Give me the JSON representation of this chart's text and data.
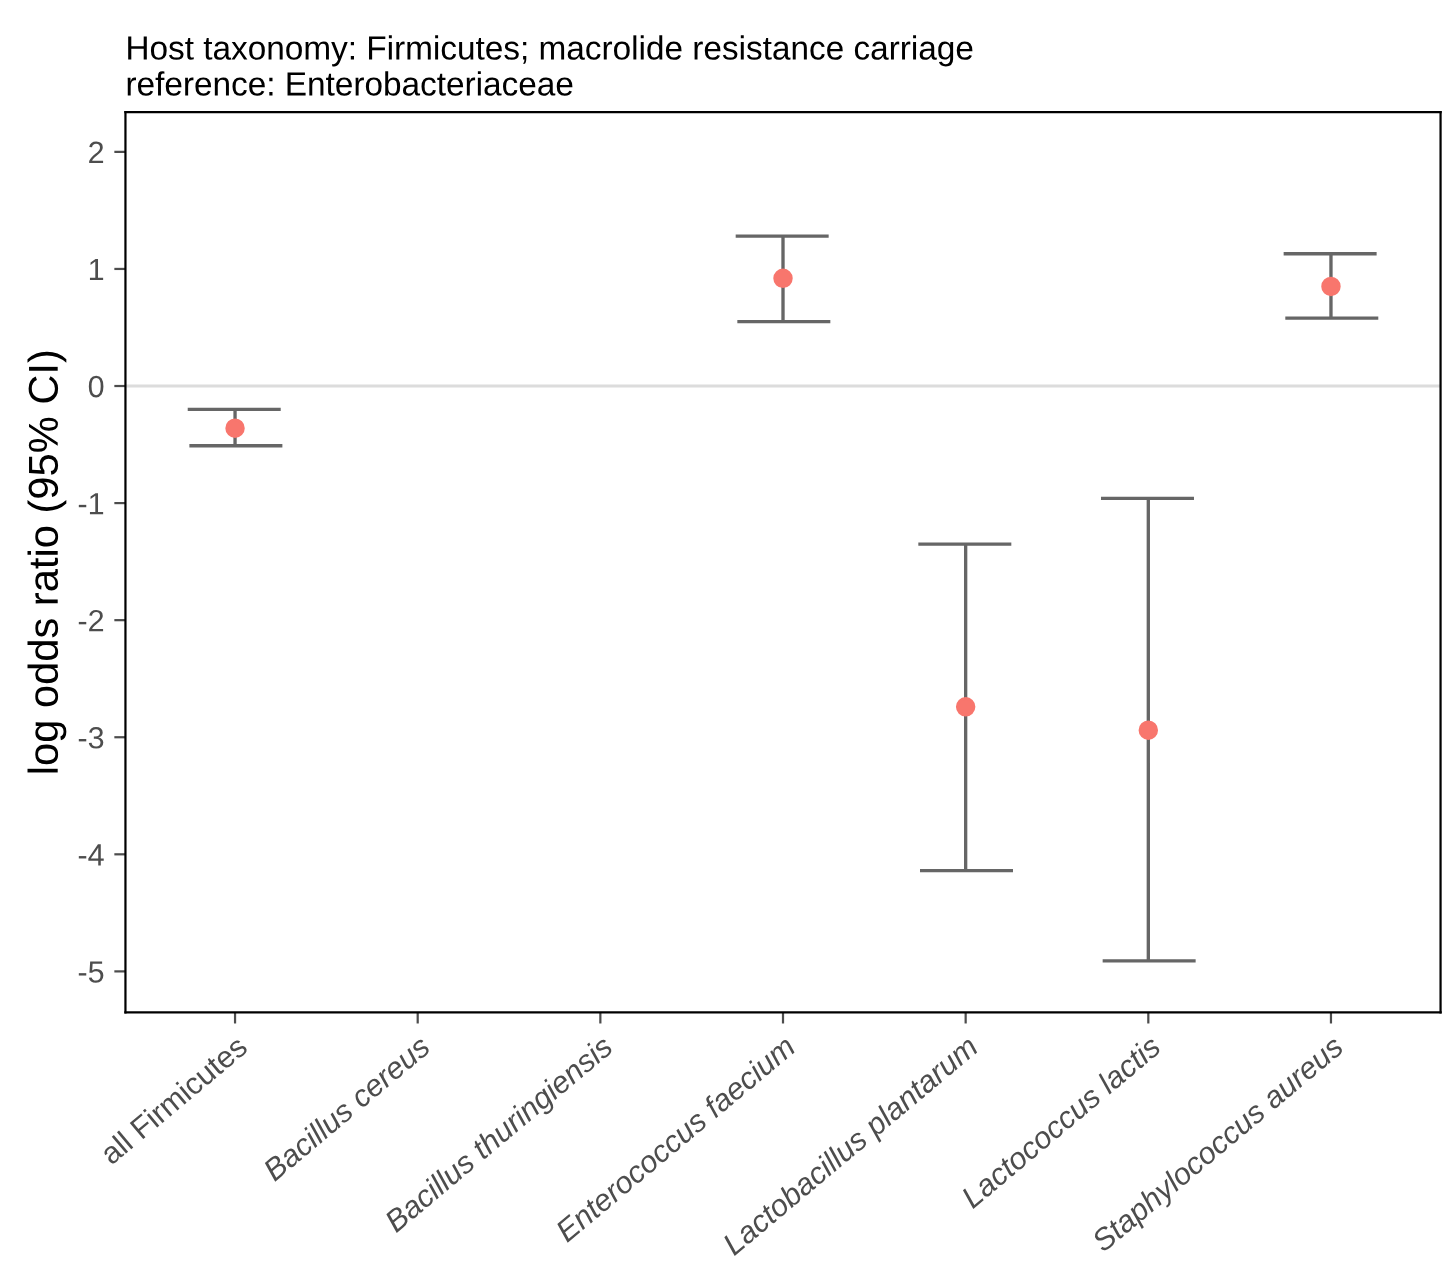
{
  "chart_data": {
    "type": "scatter",
    "title": "Host taxonomy: Firmicutes; macrolide resistance carriage\nreference: Enterobacteriaceae",
    "ylabel": "log odds ratio (95% CI)",
    "categories": [
      "all Firmicutes",
      "Bacillus cereus",
      "Bacillus thuringiensis",
      "Enterococcus faecium",
      "Lactobacillus plantarum",
      "Lactococcus lactis",
      "Staphylococcus aureus"
    ],
    "color": "#f8766d",
    "values": [
      -0.36,
      null,
      null,
      0.92,
      -2.74,
      -2.94,
      0.85
    ],
    "errors": [
      [
        -0.51,
        -0.2
      ],
      null,
      null,
      [
        0.55,
        1.28
      ],
      [
        -4.14,
        -1.35
      ],
      [
        -4.91,
        -0.96
      ],
      [
        0.58,
        1.13
      ]
    ],
    "ylim": [
      -5.35,
      2.34
    ],
    "yticks": [
      -5,
      -4,
      -3,
      -2,
      -1,
      0,
      1,
      2
    ],
    "ref_lines": [
      {
        "axis": "y",
        "value": 0,
        "color": "#dcdcdc"
      }
    ],
    "marker": "circle",
    "grid": false,
    "legend": false
  }
}
